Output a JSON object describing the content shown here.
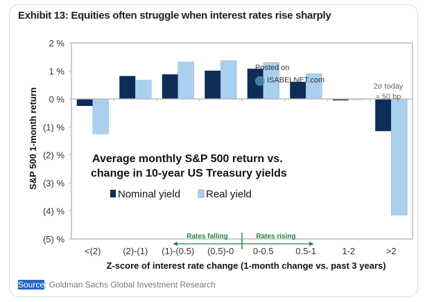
{
  "title": "Exhibit 13: Equities often struggle when interest rates rise sharply",
  "source_label": "Source",
  "source_text": ": Goldman Sachs Global Investment Research",
  "watermark": {
    "line1": "Posted on",
    "line2": "ISABELNET.com"
  },
  "chart_data": {
    "type": "bar",
    "title": "Average monthly S&P 500 return vs. change in 10-year US Treasury yields",
    "title_lines": [
      "Average monthly S&P 500 return vs.",
      "change in 10-year US Treasury yields"
    ],
    "xlabel": "Z-score of interest rate change (1-month change vs. past 3 years)",
    "ylabel": "S&P 500 1-month return",
    "ylim": [
      -5,
      2
    ],
    "yticks": [
      2,
      1,
      0,
      -1,
      -2,
      -3,
      -4,
      -5
    ],
    "ytick_labels": [
      "2 %",
      "1 %",
      "0 %",
      "(1) %",
      "(2) %",
      "(3) %",
      "(4) %",
      "(5) %"
    ],
    "categories": [
      "<(2)",
      "(2)-(1)",
      "(1)-(0.5)",
      "(0.5)-0",
      "0-0.5",
      "0.5-1",
      "1-2",
      ">2"
    ],
    "series": [
      {
        "name": "Nominal yield",
        "color": "#0d2d57",
        "values": [
          -0.25,
          0.82,
          0.88,
          1.01,
          1.08,
          0.61,
          -0.05,
          -1.15
        ]
      },
      {
        "name": "Real yield",
        "color": "#a9d0ef",
        "values": [
          -1.25,
          0.67,
          1.32,
          1.37,
          1.3,
          0.9,
          -0.02,
          -4.15
        ]
      }
    ],
    "legend_position": "center",
    "annotations": {
      "rates_falling": "Rates falling",
      "rates_rising": "Rates rising",
      "today_line1": "2σ today",
      "today_line2": "≈ 50 bp"
    },
    "annotation_color": "#1f8a3c"
  }
}
